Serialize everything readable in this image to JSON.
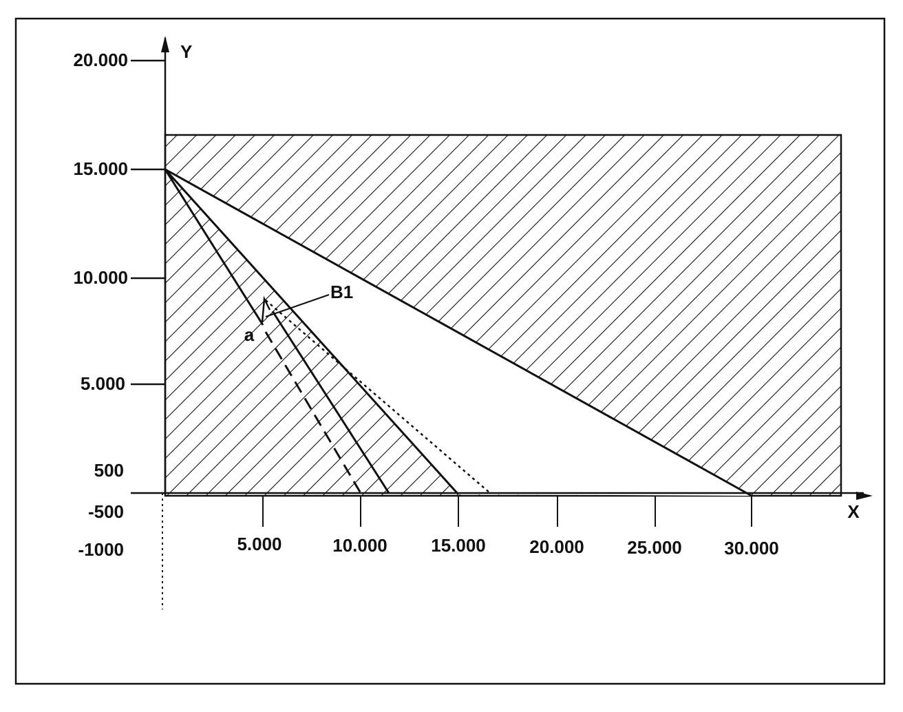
{
  "y_axis": {
    "label": "Y",
    "ticks": [
      "20.000",
      "15.000",
      "10.000",
      "5.000"
    ],
    "low_labels": [
      "500",
      "-500",
      "-1000"
    ]
  },
  "x_axis": {
    "label": "X",
    "ticks": [
      "5.000",
      "10.000",
      "15.000",
      "20.000",
      "25.000",
      "30.000"
    ]
  },
  "annotations": {
    "b1": "B1",
    "a": "a"
  }
}
